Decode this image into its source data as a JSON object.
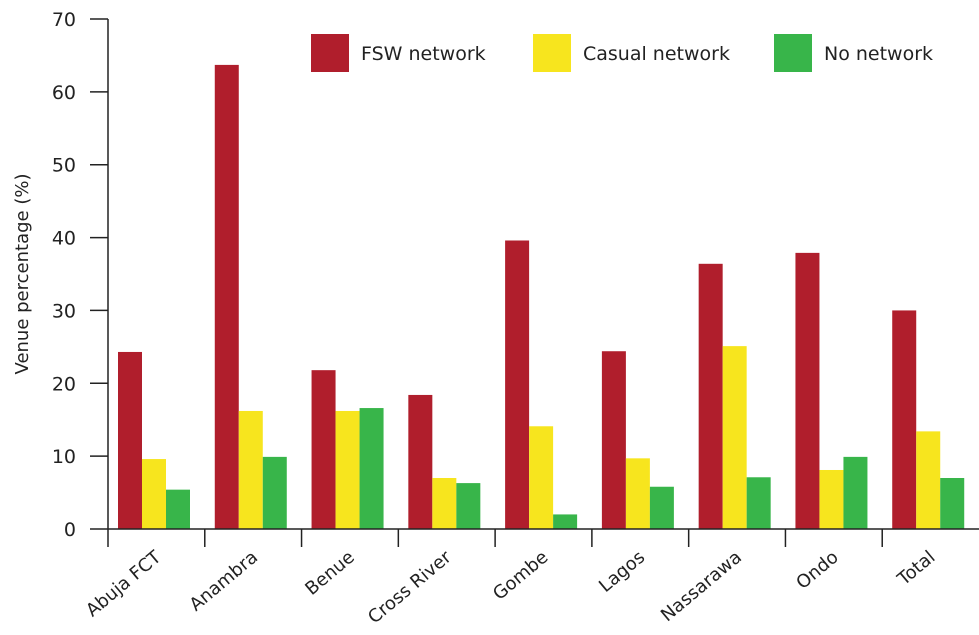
{
  "chart_data": {
    "type": "bar",
    "title": "",
    "xlabel": "",
    "ylabel": "Venue percentage (%)",
    "ylim": [
      0,
      70
    ],
    "yticks": [
      0,
      10,
      20,
      30,
      40,
      50,
      60,
      70
    ],
    "grid": false,
    "legend_position": "top-right",
    "categories": [
      "Abuja FCT",
      "Anambra",
      "Benue",
      "Cross River",
      "Gombe",
      "Lagos",
      "Nassarawa",
      "Ondo",
      "Total"
    ],
    "series": [
      {
        "name": "FSW network",
        "color": "#b01e2c",
        "values": [
          24.3,
          63.7,
          21.8,
          18.4,
          39.6,
          24.4,
          36.4,
          37.9,
          30.0
        ]
      },
      {
        "name": "Casual network",
        "color": "#f7e51e",
        "values": [
          9.6,
          16.2,
          16.2,
          7.0,
          14.1,
          9.7,
          25.1,
          8.1,
          13.4
        ]
      },
      {
        "name": "No network",
        "color": "#38b54a",
        "values": [
          5.4,
          9.9,
          16.6,
          6.3,
          2.0,
          5.8,
          7.1,
          9.9,
          7.0
        ]
      }
    ]
  }
}
